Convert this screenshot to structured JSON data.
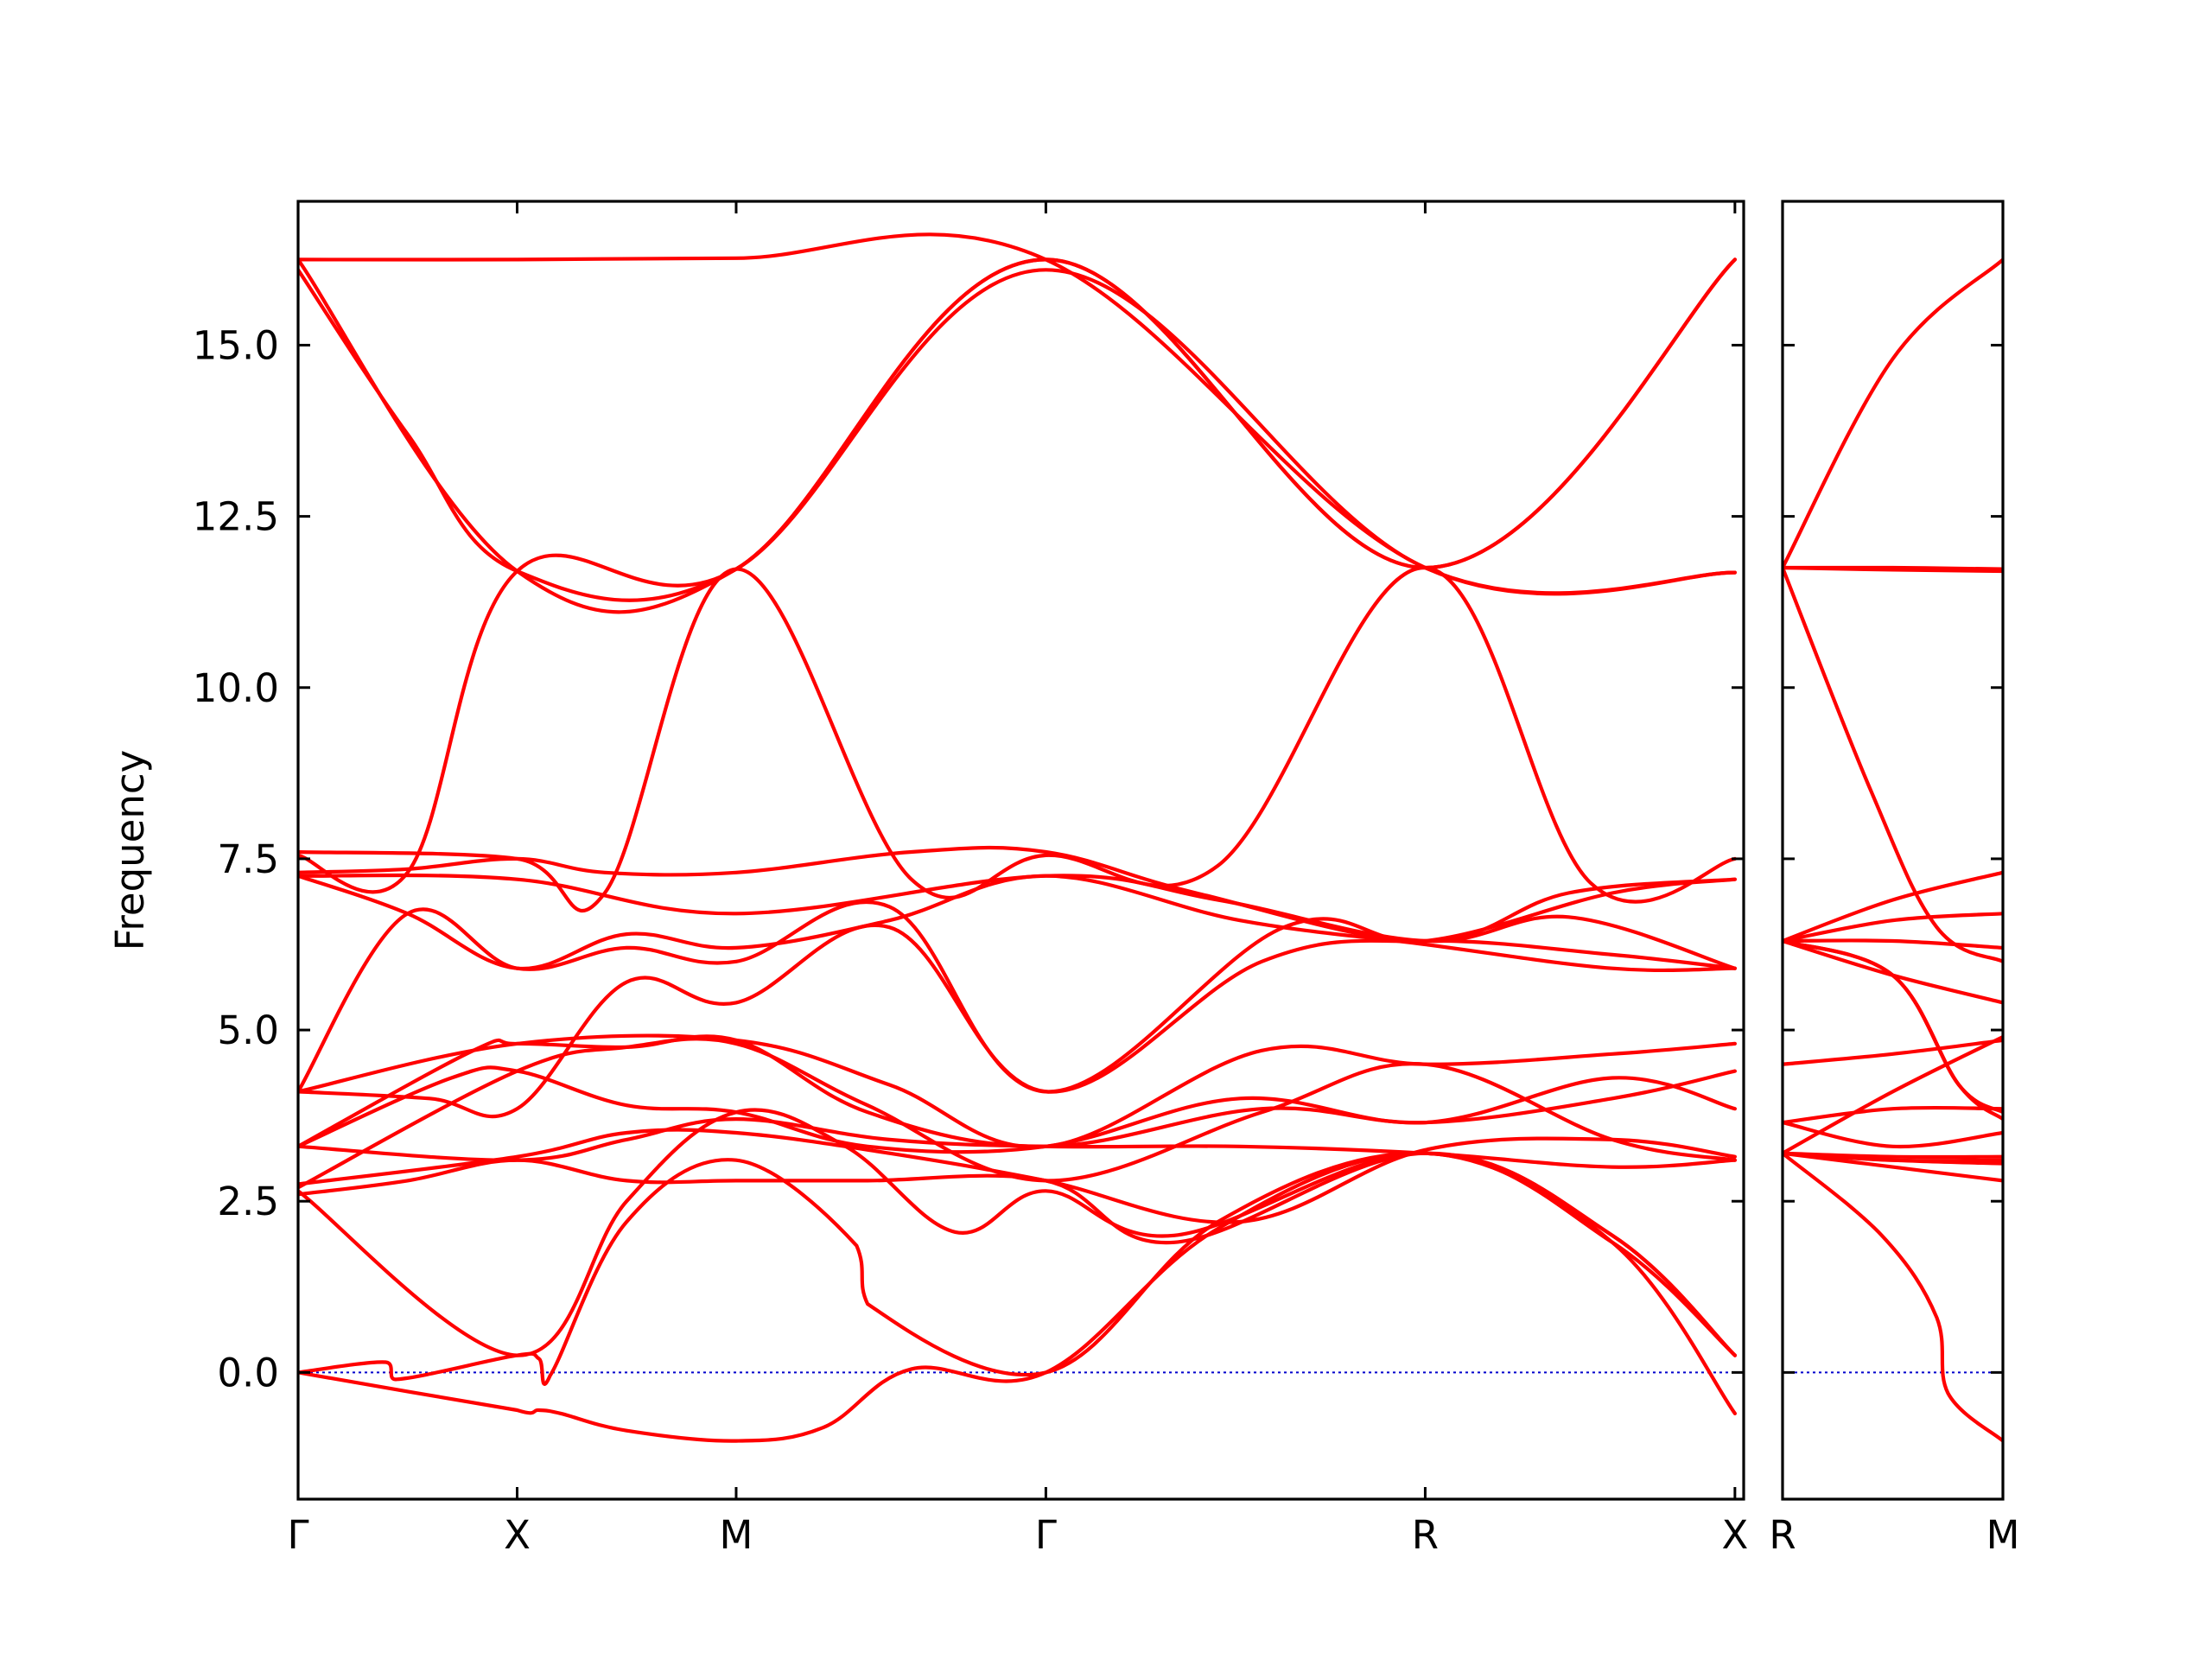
{
  "chart_data": {
    "type": "line",
    "ylabel": "Frequency",
    "xlabel": "",
    "title": "",
    "ylim": [
      -1.85,
      17.1
    ],
    "yticks": [
      0.0,
      2.5,
      5.0,
      7.5,
      10.0,
      12.5,
      15.0
    ],
    "ytick_labels": [
      "0.0",
      "2.5",
      "5.0",
      "7.5",
      "10.0",
      "12.5",
      "15.0"
    ],
    "band_color": "#ff0000",
    "zero_line_color": "#0000cc",
    "grid": false,
    "panels": [
      {
        "name": "path-1",
        "xrange": [
          0,
          6.6
        ],
        "high_symmetry_points": [
          {
            "label": "Γ",
            "x": 0.0
          },
          {
            "label": "X",
            "x": 1.0
          },
          {
            "label": "M",
            "x": 2.0
          },
          {
            "label": "Γ",
            "x": 3.414
          },
          {
            "label": "R",
            "x": 5.146
          },
          {
            "label": "X",
            "x": 6.56
          }
        ],
        "bands": [
          {
            "x": [
              0,
              1,
              2,
              3.414,
              5.146,
              6.56
            ],
            "y": [
              16.25,
              16.25,
              16.27,
              16.25,
              11.75,
              11.68
            ]
          },
          {
            "x": [
              0,
              1,
              2,
              3.414,
              5.146,
              6.56
            ],
            "y": [
              16.25,
              11.7,
              11.73,
              16.25,
              11.75,
              16.25
            ]
          },
          {
            "x": [
              0,
              0.5,
              1,
              2,
              3.414,
              5.146,
              6.56
            ],
            "y": [
              16.1,
              13.7,
              11.7,
              11.73,
              16.1,
              11.75,
              11.68
            ]
          },
          {
            "x": [
              0,
              0.5,
              1,
              2,
              3.414,
              5.146,
              6.56
            ],
            "y": [
              7.55,
              7.3,
              11.7,
              11.73,
              16.25,
              11.75,
              16.25
            ]
          },
          {
            "x": [
              0,
              1,
              1.4,
              2,
              2.8,
              3.414,
              4.2,
              5.146,
              5.9,
              6.56
            ],
            "y": [
              7.6,
              7.5,
              7.0,
              11.73,
              7.2,
              7.55,
              7.4,
              11.75,
              7.15,
              7.5
            ]
          },
          {
            "x": [
              0,
              0.5,
              1,
              1.4,
              2,
              2.8,
              3.414,
              4.1,
              5.146,
              5.8,
              6.56
            ],
            "y": [
              7.3,
              7.35,
              7.5,
              7.3,
              7.3,
              7.6,
              7.6,
              7.0,
              6.3,
              7.0,
              7.2
            ]
          },
          {
            "x": [
              0,
              1,
              2,
              3.414,
              4.2,
              5.146,
              5.8,
              6.56
            ],
            "y": [
              7.25,
              7.2,
              6.7,
              7.25,
              6.9,
              6.3,
              6.65,
              5.9
            ]
          },
          {
            "x": [
              0,
              0.5,
              1,
              1.5,
              2,
              2.7,
              3.414,
              4.3,
              5.146,
              6.0,
              6.56
            ],
            "y": [
              7.25,
              6.7,
              5.9,
              6.4,
              6.2,
              6.6,
              7.25,
              6.6,
              6.25,
              5.9,
              5.9
            ]
          },
          {
            "x": [
              0,
              0.5,
              1,
              1.5,
              2,
              2.7,
              3.414,
              4.5,
              5.146,
              6.0,
              6.56
            ],
            "y": [
              4.1,
              6.7,
              5.9,
              6.2,
              6.0,
              6.8,
              4.1,
              6.5,
              6.3,
              7.0,
              7.2
            ]
          },
          {
            "x": [
              0,
              0.6,
              1,
              1.5,
              2,
              2.7,
              3.414,
              4.4,
              5.146,
              6.0,
              6.56
            ],
            "y": [
              4.1,
              4.0,
              3.85,
              5.7,
              5.4,
              6.5,
              4.1,
              6.0,
              6.3,
              6.1,
              5.9
            ]
          },
          {
            "x": [
              0,
              1,
              2,
              2.7,
              3.414,
              4.4,
              5.146,
              6.0,
              6.56
            ],
            "y": [
              4.1,
              4.8,
              4.85,
              4.2,
              3.3,
              4.7,
              4.5,
              4.65,
              4.8
            ]
          },
          {
            "x": [
              0,
              0.8,
              1,
              1.5,
              2,
              2.6,
              3.414,
              4.4,
              5.146,
              6.0,
              6.56
            ],
            "y": [
              3.3,
              4.7,
              4.8,
              4.75,
              4.85,
              3.8,
              3.3,
              3.85,
              3.65,
              4.0,
              4.4
            ]
          },
          {
            "x": [
              0,
              0.7,
              1,
              1.5,
              2,
              2.6,
              3.414,
              4.3,
              5.146,
              6.0,
              6.56
            ],
            "y": [
              3.3,
              4.3,
              4.4,
              3.9,
              3.8,
              3.3,
              3.3,
              4.0,
              3.65,
              4.3,
              3.85
            ]
          },
          {
            "x": [
              0,
              1,
              1.5,
              2,
              2.6,
              3.414,
              4.4,
              5.146,
              6.0,
              6.56
            ],
            "y": [
              2.7,
              4.4,
              4.75,
              4.8,
              3.9,
              2.8,
              3.8,
              4.5,
              3.4,
              3.1
            ]
          },
          {
            "x": [
              0,
              1,
              1.5,
              2,
              2.7,
              3.414,
              4.3,
              5.146,
              6.0,
              6.56
            ],
            "y": [
              3.3,
              3.1,
              3.4,
              3.7,
              3.4,
              3.3,
              3.3,
              3.2,
              3.0,
              3.1
            ]
          },
          {
            "x": [
              0,
              1,
              1.5,
              2,
              2.7,
              3.414,
              4.3,
              5.146,
              6.0,
              6.56
            ],
            "y": [
              2.75,
              3.15,
              3.5,
              3.5,
              3.2,
              2.8,
              2.2,
              3.25,
              3.4,
              3.15
            ]
          },
          {
            "x": [
              0,
              1,
              1.5,
              2,
              2.5,
              3.0,
              3.414,
              4.0,
              5.146,
              6.0,
              6.56
            ],
            "y": [
              2.65,
              0.25,
              2.5,
              3.8,
              3.3,
              2.05,
              2.65,
              2.0,
              3.2,
              1.9,
              0.25
            ]
          },
          {
            "x": [
              0,
              0.5,
              1,
              1.5,
              2,
              2.6,
              3.414,
              4.0,
              5.146,
              6.0,
              6.56
            ],
            "y": [
              2.6,
              2.8,
              3.1,
              2.8,
              2.8,
              2.8,
              2.8,
              1.9,
              3.2,
              2.0,
              0.25
            ]
          },
          {
            "x": [
              0,
              0.4,
              0.45,
              1,
              1.1,
              1.15,
              1.5,
              2,
              2.55,
              2.6,
              3.414,
              4.2,
              5.146,
              6.0,
              6.56
            ],
            "y": [
              0.0,
              0.15,
              -0.1,
              0.25,
              0.2,
              -0.05,
              2.2,
              3.1,
              1.85,
              1.0,
              0.0,
              2.2,
              3.2,
              2.0,
              0.25
            ]
          },
          {
            "x": [
              0,
              1,
              1.1,
              1.2,
              1.5,
              2,
              2.4,
              2.8,
              3.414,
              4.2,
              5.146,
              6.0,
              6.56
            ],
            "y": [
              0.0,
              -0.55,
              -0.55,
              -0.6,
              -0.85,
              -1.0,
              -0.8,
              0.05,
              0.0,
              2.1,
              3.2,
              1.9,
              -0.6
            ]
          }
        ]
      },
      {
        "name": "path-2",
        "xrange": [
          0,
          1
        ],
        "high_symmetry_points": [
          {
            "label": "R",
            "x": 0.0
          },
          {
            "label": "M",
            "x": 1.0
          }
        ],
        "bands": [
          {
            "x": [
              0,
              0.5,
              1
            ],
            "y": [
              11.75,
              14.8,
              16.25
            ]
          },
          {
            "x": [
              0,
              0.5,
              1
            ],
            "y": [
              11.75,
              11.75,
              11.73
            ]
          },
          {
            "x": [
              0,
              0.5,
              1
            ],
            "y": [
              11.75,
              11.72,
              11.7
            ]
          },
          {
            "x": [
              0,
              0.4,
              0.7,
              1
            ],
            "y": [
              11.75,
              8.5,
              6.5,
              6.0
            ]
          },
          {
            "x": [
              0,
              0.5,
              1
            ],
            "y": [
              6.3,
              6.9,
              7.3
            ]
          },
          {
            "x": [
              0,
              0.5,
              1
            ],
            "y": [
              6.3,
              6.6,
              6.7
            ]
          },
          {
            "x": [
              0,
              0.5,
              1
            ],
            "y": [
              6.3,
              6.3,
              6.2
            ]
          },
          {
            "x": [
              0,
              0.5,
              0.8,
              1
            ],
            "y": [
              6.3,
              5.8,
              4.2,
              3.8
            ]
          },
          {
            "x": [
              0,
              0.5,
              0.8,
              1
            ],
            "y": [
              6.3,
              5.8,
              4.2,
              3.7
            ]
          },
          {
            "x": [
              0,
              0.5,
              1
            ],
            "y": [
              6.3,
              5.8,
              5.4
            ]
          },
          {
            "x": [
              0,
              0.5,
              1
            ],
            "y": [
              4.5,
              4.65,
              4.85
            ]
          },
          {
            "x": [
              0,
              0.5,
              1
            ],
            "y": [
              3.65,
              3.85,
              3.85
            ]
          },
          {
            "x": [
              0,
              0.5,
              1
            ],
            "y": [
              3.2,
              4.1,
              4.9
            ]
          },
          {
            "x": [
              0,
              0.5,
              1
            ],
            "y": [
              3.65,
              3.3,
              3.5
            ]
          },
          {
            "x": [
              0,
              0.5,
              1
            ],
            "y": [
              3.2,
              3.15,
              3.15
            ]
          },
          {
            "x": [
              0,
              0.5,
              1
            ],
            "y": [
              3.2,
              3.1,
              3.1
            ]
          },
          {
            "x": [
              0,
              0.5,
              1
            ],
            "y": [
              3.2,
              3.0,
              2.8
            ]
          },
          {
            "x": [
              0,
              0.5,
              1
            ],
            "y": [
              3.2,
              3.1,
              3.05
            ]
          },
          {
            "x": [
              0,
              0.45,
              0.7,
              0.75,
              1
            ],
            "y": [
              3.2,
              2.0,
              0.8,
              -0.3,
              -1.0
            ]
          }
        ]
      }
    ]
  }
}
